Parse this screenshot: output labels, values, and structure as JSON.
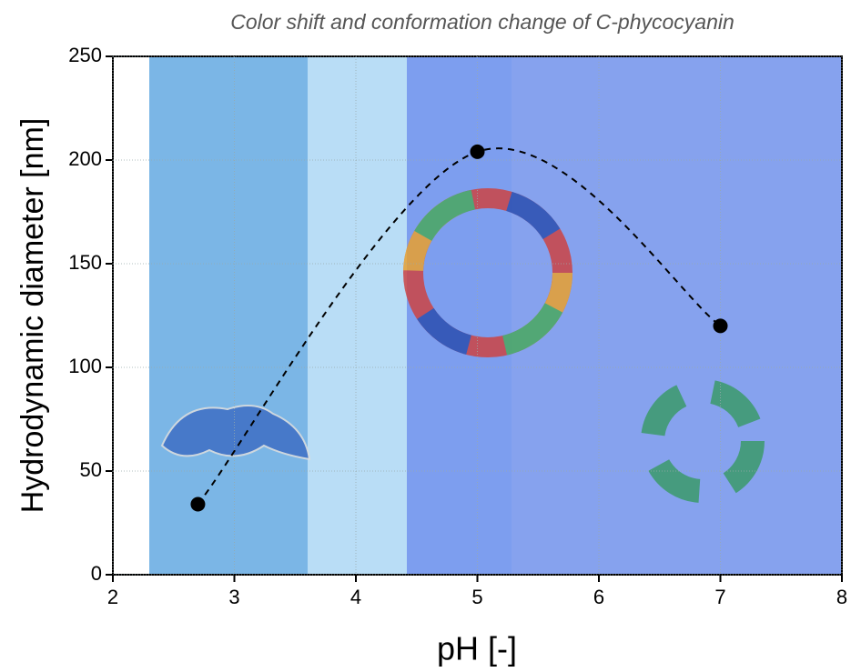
{
  "chart_data": {
    "type": "scatter",
    "title": "Color shift and conformation change of C-phycocyanin",
    "x_label": "pH [-]",
    "y_label": "Hydrodynamic diameter [nm]",
    "series": [
      {
        "x": [
          2.7,
          5.0,
          7.0
        ],
        "values": [
          34,
          204,
          120
        ],
        "color": "#000000"
      }
    ],
    "trend_line": "dashed",
    "xlim": [
      2,
      8
    ],
    "xticks": [
      2,
      3,
      4,
      5,
      6,
      7,
      8
    ],
    "ylim": [
      0,
      250
    ],
    "yticks": [
      0,
      50,
      100,
      150,
      200,
      250
    ],
    "grid": true
  }
}
